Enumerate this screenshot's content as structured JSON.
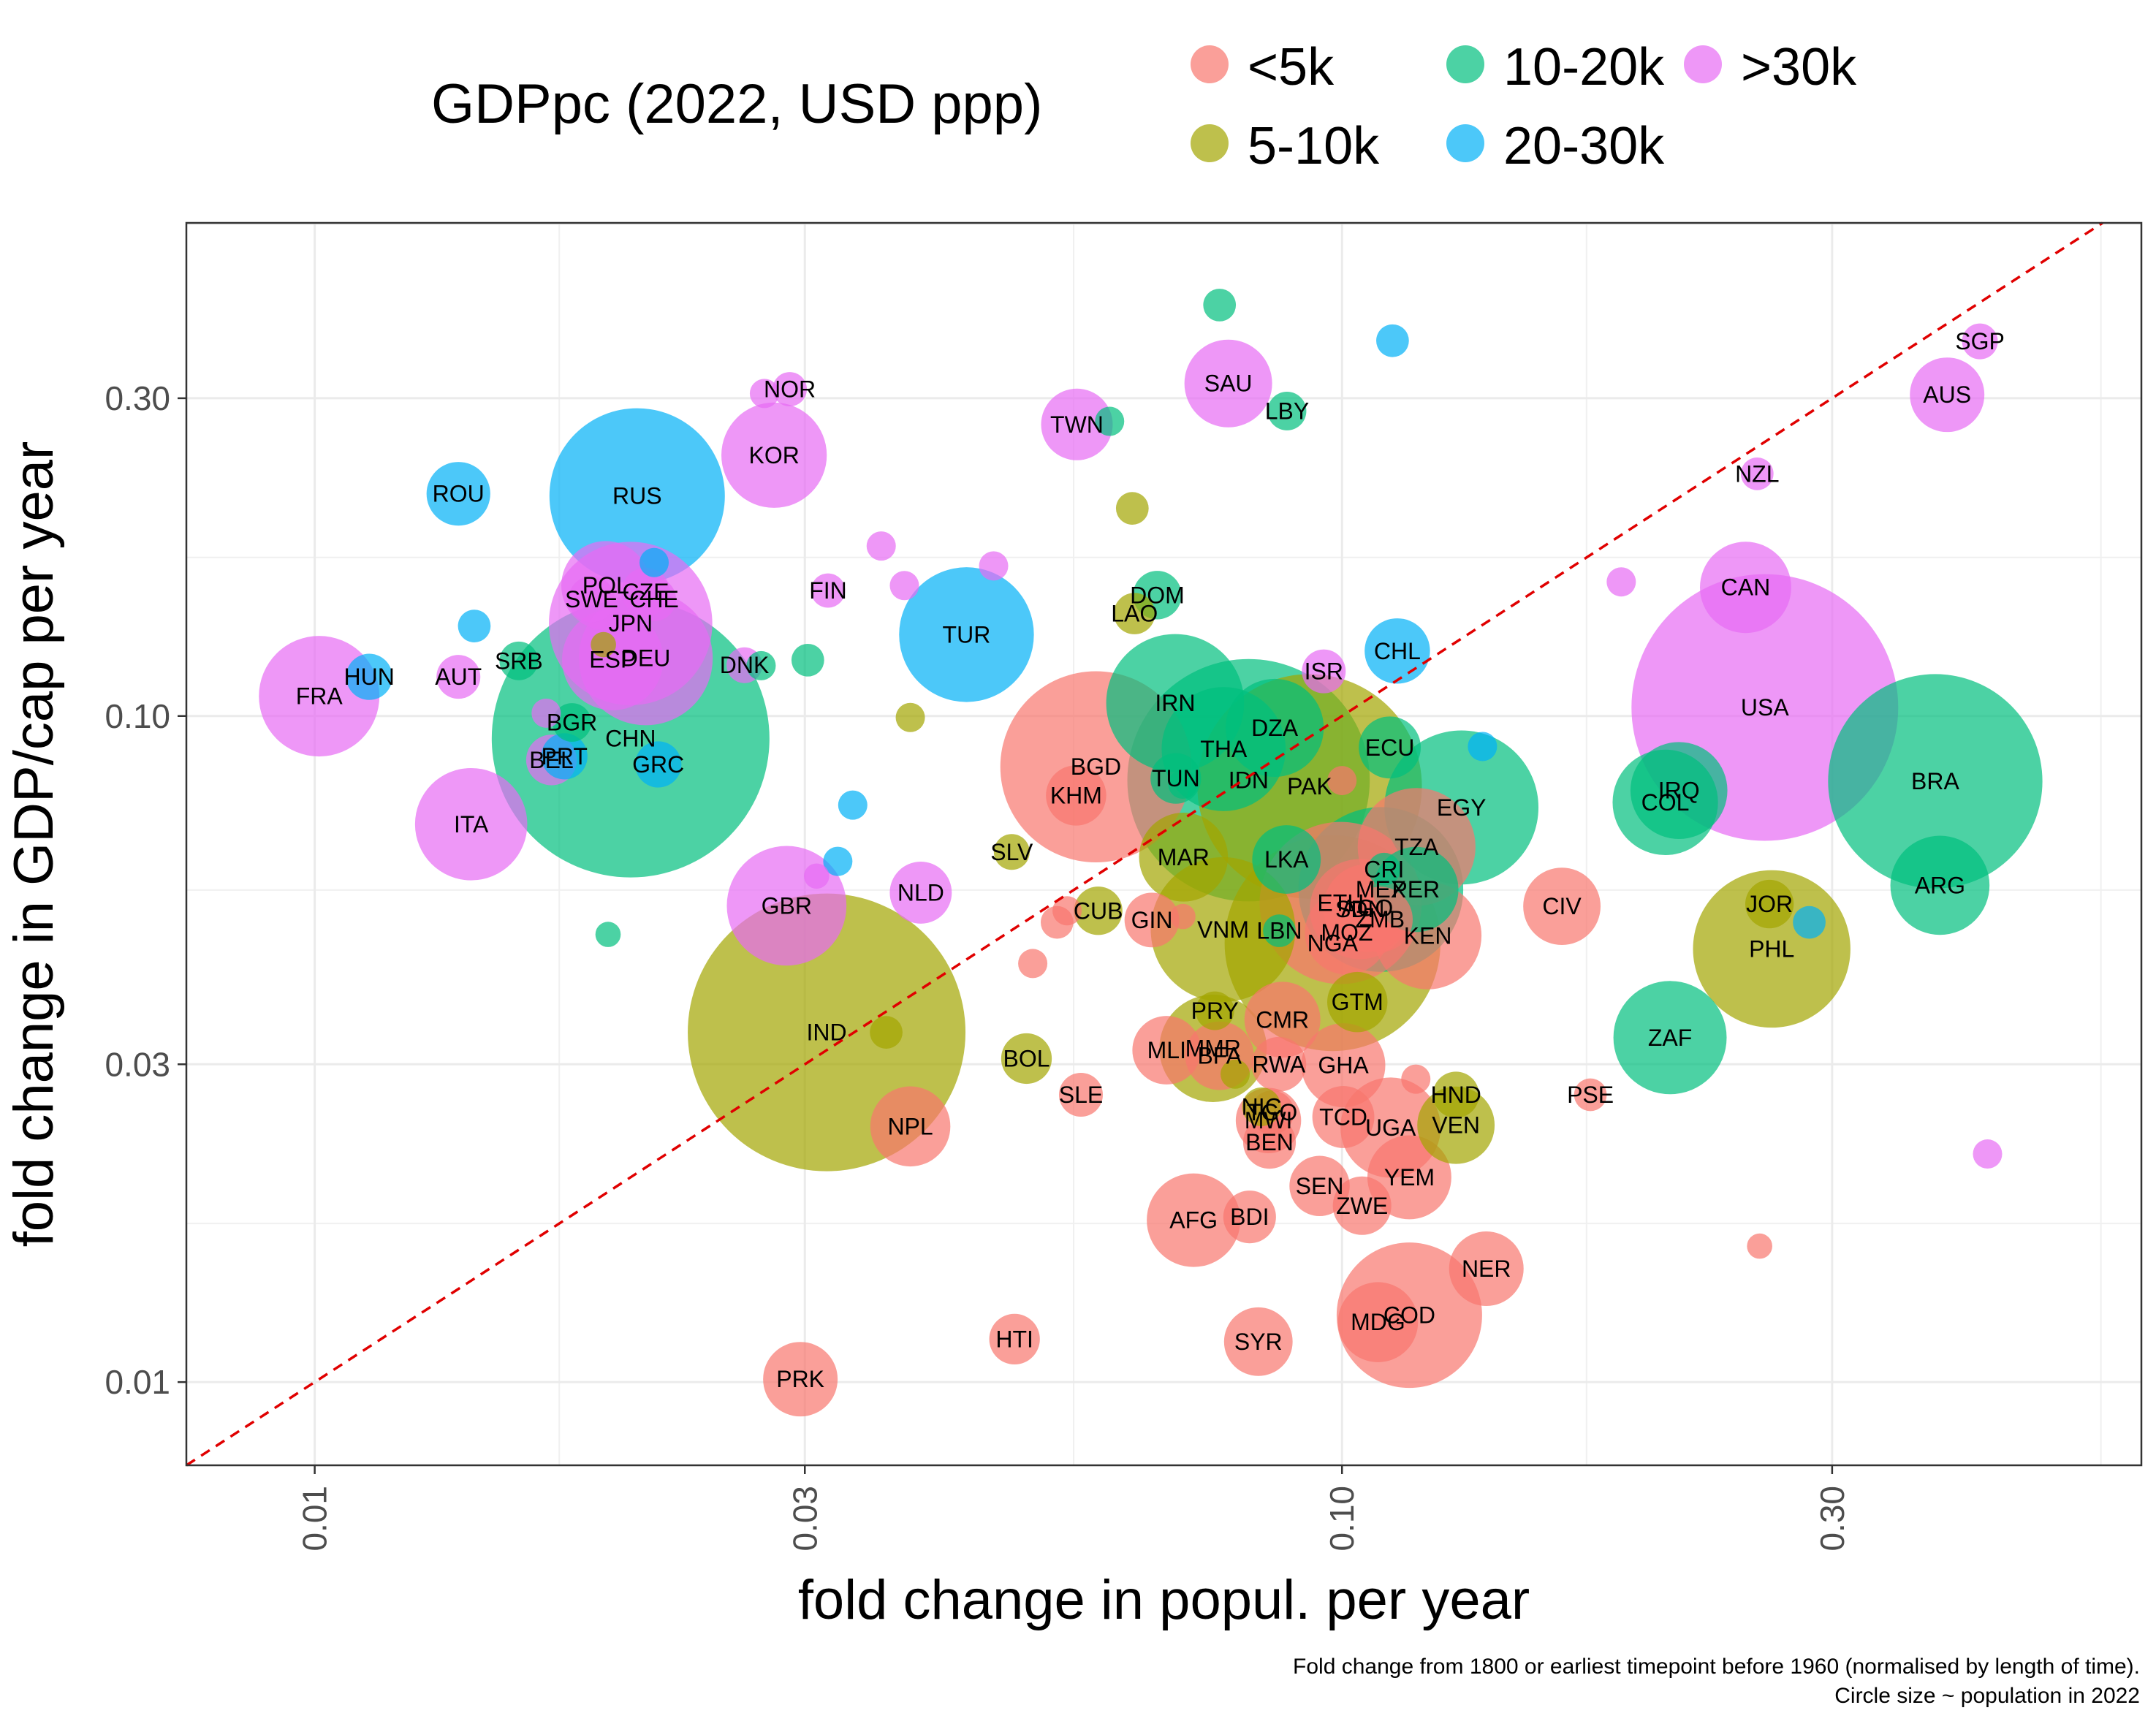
{
  "chart_data": {
    "type": "scatter",
    "xlabel": "fold change in popul. per year",
    "ylabel": "fold change in GDP/cap per year",
    "x_scale": "log10",
    "y_scale": "log10",
    "xlim": [
      0.0075,
      0.6
    ],
    "ylim": [
      0.0075,
      0.55
    ],
    "x_ticks": [
      0.01,
      0.03,
      0.1,
      0.3
    ],
    "x_tick_labels": [
      "0.01",
      "0.03",
      "0.10",
      "0.30"
    ],
    "y_ticks": [
      0.01,
      0.03,
      0.1,
      0.3
    ],
    "y_tick_labels": [
      "0.01",
      "0.03",
      "0.10",
      "0.30"
    ],
    "grid": true,
    "reference_line": "y = x",
    "legend": {
      "title": "GDPpc (2022, USD ppp)",
      "position": "top",
      "entries": [
        {
          "key": "lt5k",
          "label": "<5k",
          "color": "#F8766D"
        },
        {
          "key": "5to10k",
          "label": "5-10k",
          "color": "#A3A500"
        },
        {
          "key": "10to20k",
          "label": "10-20k",
          "color": "#00BF7D"
        },
        {
          "key": "20to30k",
          "label": "20-30k",
          "color": "#00B0F6"
        },
        {
          "key": "gt30k",
          "label": ">30k",
          "color": "#E76BF3"
        }
      ]
    },
    "caption": [
      "Fold change from 1800 or earliest timepoint before 1960 (normalised by length of time).",
      "Circle size ~ population in 2022"
    ],
    "points": [
      {
        "label": "CHN",
        "x": 0.0203,
        "y": 0.0925,
        "g": "10to20k",
        "pop": 1412
      },
      {
        "label": "IND",
        "x": 0.0315,
        "y": 0.0335,
        "g": "5to10k",
        "pop": 1417
      },
      {
        "label": "USA",
        "x": 0.258,
        "y": 0.103,
        "g": "gt30k",
        "pop": 333
      },
      {
        "label": "IDN",
        "x": 0.0811,
        "y": 0.0801,
        "g": "10to20k",
        "pop": 275
      },
      {
        "label": "PAK",
        "x": 0.093,
        "y": 0.0784,
        "g": "5to10k",
        "pop": 236
      },
      {
        "label": "NGA",
        "x": 0.0979,
        "y": 0.0456,
        "g": "5to10k",
        "pop": 218
      },
      {
        "label": "BRA",
        "x": 0.378,
        "y": 0.0798,
        "g": "10to20k",
        "pop": 215
      },
      {
        "label": "BGD",
        "x": 0.0576,
        "y": 0.0839,
        "g": "lt5k",
        "pop": 171
      },
      {
        "label": "RUS",
        "x": 0.0206,
        "y": 0.214,
        "g": "20to30k",
        "pop": 144
      },
      {
        "label": "MEX",
        "x": 0.1091,
        "y": 0.0549,
        "g": "10to20k",
        "pop": 127
      },
      {
        "label": "JPN",
        "x": 0.0203,
        "y": 0.1377,
        "g": "gt30k",
        "pop": 125
      },
      {
        "label": "ETH",
        "x": 0.0997,
        "y": 0.0524,
        "g": "lt5k",
        "pop": 123
      },
      {
        "label": "PHL",
        "x": 0.262,
        "y": 0.0447,
        "g": "5to10k",
        "pop": 116
      },
      {
        "label": "EGY",
        "x": 0.1307,
        "y": 0.0729,
        "g": "10to20k",
        "pop": 111
      },
      {
        "label": "VNM",
        "x": 0.0766,
        "y": 0.0478,
        "g": "5to10k",
        "pop": 98
      },
      {
        "label": "COD",
        "x": 0.1163,
        "y": 0.0126,
        "g": "lt5k",
        "pop": 99
      },
      {
        "label": "TUR",
        "x": 0.0431,
        "y": 0.1325,
        "g": "20to30k",
        "pop": 85
      },
      {
        "label": "IRN",
        "x": 0.0688,
        "y": 0.1046,
        "g": "10to20k",
        "pop": 89
      },
      {
        "label": "DEU",
        "x": 0.021,
        "y": 0.1221,
        "g": "gt30k",
        "pop": 84
      },
      {
        "label": "THA",
        "x": 0.0767,
        "y": 0.0892,
        "g": "10to20k",
        "pop": 72
      },
      {
        "label": "GBR",
        "x": 0.0288,
        "y": 0.0519,
        "g": "gt30k",
        "pop": 67
      },
      {
        "label": "FRA",
        "x": 0.0101,
        "y": 0.1071,
        "g": "gt30k",
        "pop": 68
      },
      {
        "label": "TZA",
        "x": 0.1182,
        "y": 0.0636,
        "g": "lt5k",
        "pop": 65
      },
      {
        "label": "ZAF",
        "x": 0.2086,
        "y": 0.0329,
        "g": "10to20k",
        "pop": 60
      },
      {
        "label": "ITA",
        "x": 0.0142,
        "y": 0.0688,
        "g": "gt30k",
        "pop": 59
      },
      {
        "label": "KEN",
        "x": 0.1212,
        "y": 0.0468,
        "g": "lt5k",
        "pop": 54
      },
      {
        "label": "MMR",
        "x": 0.0749,
        "y": 0.0317,
        "g": "5to10k",
        "pop": 54
      },
      {
        "label": "COL",
        "x": 0.2064,
        "y": 0.0742,
        "g": "10to20k",
        "pop": 52
      },
      {
        "label": "KOR",
        "x": 0.028,
        "y": 0.2464,
        "g": "gt30k",
        "pop": 52
      },
      {
        "label": "ESP",
        "x": 0.0195,
        "y": 0.1215,
        "g": "gt30k",
        "pop": 48
      },
      {
        "label": "UGA",
        "x": 0.1115,
        "y": 0.0241,
        "g": "lt5k",
        "pop": 47
      },
      {
        "label": "ARG",
        "x": 0.382,
        "y": 0.0557,
        "g": "10to20k",
        "pop": 46
      },
      {
        "label": "DZA",
        "x": 0.086,
        "y": 0.096,
        "g": "10to20k",
        "pop": 45
      },
      {
        "label": "IRQ",
        "x": 0.2128,
        "y": 0.0773,
        "g": "10to20k",
        "pop": 44
      },
      {
        "label": "SDN",
        "x": 0.1041,
        "y": 0.0513,
        "g": "lt5k",
        "pop": 47
      },
      {
        "label": "AFG",
        "x": 0.0717,
        "y": 0.0175,
        "g": "lt5k",
        "pop": 41
      },
      {
        "label": "POL",
        "x": 0.0192,
        "y": 0.157,
        "g": "gt30k",
        "pop": 37
      },
      {
        "label": "CAN",
        "x": 0.2471,
        "y": 0.156,
        "g": "gt30k",
        "pop": 39
      },
      {
        "label": "MAR",
        "x": 0.0701,
        "y": 0.0614,
        "g": "5to10k",
        "pop": 37
      },
      {
        "label": "SAU",
        "x": 0.0775,
        "y": 0.3157,
        "g": "gt30k",
        "pop": 36
      },
      {
        "label": "YEM",
        "x": 0.1163,
        "y": 0.0203,
        "g": "lt5k",
        "pop": 33
      },
      {
        "label": "PER",
        "x": 0.118,
        "y": 0.0549,
        "g": "10to20k",
        "pop": 34
      },
      {
        "label": "AGO",
        "x": 0.1058,
        "y": 0.0515,
        "g": "lt5k",
        "pop": 36
      },
      {
        "label": "MOZ",
        "x": 0.1011,
        "y": 0.0473,
        "g": "lt5k",
        "pop": 33
      },
      {
        "label": "GHA",
        "x": 0.1003,
        "y": 0.0299,
        "g": "lt5k",
        "pop": 33
      },
      {
        "label": "NPL",
        "x": 0.038,
        "y": 0.0242,
        "g": "lt5k",
        "pop": 30
      },
      {
        "label": "MDG",
        "x": 0.1084,
        "y": 0.0123,
        "g": "lt5k",
        "pop": 30
      },
      {
        "label": "CIV",
        "x": 0.1637,
        "y": 0.0518,
        "g": "lt5k",
        "pop": 28
      },
      {
        "label": "CMR",
        "x": 0.0875,
        "y": 0.035,
        "g": "lt5k",
        "pop": 27
      },
      {
        "label": "AUS",
        "x": 0.3882,
        "y": 0.3036,
        "g": "gt30k",
        "pop": 26
      },
      {
        "label": "NER",
        "x": 0.1382,
        "y": 0.0148,
        "g": "lt5k",
        "pop": 26
      },
      {
        "label": "TWN",
        "x": 0.0552,
        "y": 0.274,
        "g": "gt30k",
        "pop": 24
      },
      {
        "label": "LKA",
        "x": 0.0883,
        "y": 0.0609,
        "g": "10to20k",
        "pop": 22
      },
      {
        "label": "BFA",
        "x": 0.076,
        "y": 0.0309,
        "g": "lt5k",
        "pop": 22
      },
      {
        "label": "MLI",
        "x": 0.0675,
        "y": 0.0315,
        "g": "lt5k",
        "pop": 22
      },
      {
        "label": "ROU",
        "x": 0.0138,
        "y": 0.2156,
        "g": "20to30k",
        "pop": 19
      },
      {
        "label": "CHL",
        "x": 0.1132,
        "y": 0.1252,
        "g": "20to30k",
        "pop": 20
      },
      {
        "label": "KHM",
        "x": 0.0551,
        "y": 0.076,
        "g": "lt5k",
        "pop": 17
      },
      {
        "label": "MWI",
        "x": 0.0848,
        "y": 0.0247,
        "g": "lt5k",
        "pop": 20
      },
      {
        "label": "ZMB",
        "x": 0.1089,
        "y": 0.0495,
        "g": "lt5k",
        "pop": 20
      },
      {
        "label": "SYR",
        "x": 0.0829,
        "y": 0.0115,
        "g": "lt5k",
        "pop": 22
      },
      {
        "label": "NLD",
        "x": 0.0389,
        "y": 0.0543,
        "g": "gt30k",
        "pop": 18
      },
      {
        "label": "ECU",
        "x": 0.1113,
        "y": 0.0897,
        "g": "10to20k",
        "pop": 18
      },
      {
        "label": "SEN",
        "x": 0.0951,
        "y": 0.0197,
        "g": "lt5k",
        "pop": 17
      },
      {
        "label": "TCD",
        "x": 0.1003,
        "y": 0.025,
        "g": "lt5k",
        "pop": 18
      },
      {
        "label": "GTM",
        "x": 0.1035,
        "y": 0.0372,
        "g": "5to10k",
        "pop": 17
      },
      {
        "label": "ZWE",
        "x": 0.1046,
        "y": 0.0184,
        "g": "lt5k",
        "pop": 16
      },
      {
        "label": "GIN",
        "x": 0.0653,
        "y": 0.0494,
        "g": "lt5k",
        "pop": 14
      },
      {
        "label": "RWA",
        "x": 0.0868,
        "y": 0.03,
        "g": "lt5k",
        "pop": 14
      },
      {
        "label": "BEN",
        "x": 0.085,
        "y": 0.0229,
        "g": "lt5k",
        "pop": 13
      },
      {
        "label": "BDI",
        "x": 0.0813,
        "y": 0.0177,
        "g": "lt5k",
        "pop": 13
      },
      {
        "label": "BOL",
        "x": 0.0493,
        "y": 0.0306,
        "g": "5to10k",
        "pop": 12
      },
      {
        "label": "TUN",
        "x": 0.0689,
        "y": 0.0806,
        "g": "10to20k",
        "pop": 12
      },
      {
        "label": "HTI",
        "x": 0.048,
        "y": 0.0116,
        "g": "lt5k",
        "pop": 12
      },
      {
        "label": "BEL",
        "x": 0.017,
        "y": 0.0859,
        "g": "gt30k",
        "pop": 12
      },
      {
        "label": "JOR",
        "x": 0.2607,
        "y": 0.0522,
        "g": "5to10k",
        "pop": 11
      },
      {
        "label": "DOM",
        "x": 0.0661,
        "y": 0.1519,
        "g": "10to20k",
        "pop": 11
      },
      {
        "label": "CUB",
        "x": 0.0579,
        "y": 0.051,
        "g": "5to10k",
        "pop": 11
      },
      {
        "label": "SWE",
        "x": 0.0186,
        "y": 0.1497,
        "g": "gt30k",
        "pop": 10
      },
      {
        "label": "CZE",
        "x": 0.021,
        "y": 0.1535,
        "g": "gt30k",
        "pop": 11
      },
      {
        "label": "GRC",
        "x": 0.0216,
        "y": 0.0846,
        "g": "20to30k",
        "pop": 10
      },
      {
        "label": "PRT",
        "x": 0.0175,
        "y": 0.087,
        "g": "20to30k",
        "pop": 10
      },
      {
        "label": "HUN",
        "x": 0.0113,
        "y": 0.1145,
        "g": "20to30k",
        "pop": 10
      },
      {
        "label": "HND",
        "x": 0.1291,
        "y": 0.027,
        "g": "5to10k",
        "pop": 10
      },
      {
        "label": "TGO",
        "x": 0.0855,
        "y": 0.0254,
        "g": "lt5k",
        "pop": 9
      },
      {
        "label": "NIC",
        "x": 0.0835,
        "y": 0.0259,
        "g": "5to10k",
        "pop": 7
      },
      {
        "label": "SLE",
        "x": 0.0557,
        "y": 0.027,
        "g": "lt5k",
        "pop": 9
      },
      {
        "label": "AUT",
        "x": 0.0138,
        "y": 0.1145,
        "g": "gt30k",
        "pop": 9
      },
      {
        "label": "CHE",
        "x": 0.0214,
        "y": 0.1497,
        "g": "gt30k",
        "pop": 9
      },
      {
        "label": "ISR",
        "x": 0.096,
        "y": 0.1167,
        "g": "gt30k",
        "pop": 9
      },
      {
        "label": "LAO",
        "x": 0.0628,
        "y": 0.1425,
        "g": "5to10k",
        "pop": 8
      },
      {
        "label": "SRB",
        "x": 0.0158,
        "y": 0.121,
        "g": "10to20k",
        "pop": 7
      },
      {
        "label": "BGR",
        "x": 0.0178,
        "y": 0.0978,
        "g": "10to20k",
        "pop": 7
      },
      {
        "label": "PRY",
        "x": 0.0752,
        "y": 0.0361,
        "g": "5to10k",
        "pop": 7
      },
      {
        "label": "LBY",
        "x": 0.0884,
        "y": 0.287,
        "g": "10to20k",
        "pop": 7
      },
      {
        "label": "LBN",
        "x": 0.0869,
        "y": 0.0476,
        "g": "10to20k",
        "pop": 5
      },
      {
        "label": "SLV",
        "x": 0.0477,
        "y": 0.0625,
        "g": "5to10k",
        "pop": 6
      },
      {
        "label": "VEN",
        "x": 0.1291,
        "y": 0.0243,
        "g": "5to10k",
        "pop": 28
      },
      {
        "label": "SGP",
        "x": 0.4178,
        "y": 0.3651,
        "g": "gt30k",
        "pop": 6
      },
      {
        "label": "DNK",
        "x": 0.0262,
        "y": 0.1192,
        "g": "gt30k",
        "pop": 6
      },
      {
        "label": "FIN",
        "x": 0.0316,
        "y": 0.1543,
        "g": "gt30k",
        "pop": 5.5
      },
      {
        "label": "NOR",
        "x": 0.029,
        "y": 0.3095,
        "g": "gt30k",
        "pop": 5.5
      },
      {
        "label": "CRI",
        "x": 0.1099,
        "y": 0.0589,
        "g": "10to20k",
        "pop": 5
      },
      {
        "label": "NZL",
        "x": 0.2536,
        "y": 0.231,
        "g": "gt30k",
        "pop": 5
      },
      {
        "label": "PSE",
        "x": 0.1745,
        "y": 0.027,
        "g": "lt5k",
        "pop": 5
      },
      {
        "label": "PRK",
        "x": 0.0297,
        "y": 0.0101,
        "g": "lt5k",
        "pop": 26
      },
      {
        "label": "",
        "x": 0.076,
        "y": 0.414,
        "g": "10to20k",
        "pop": 5
      },
      {
        "label": "",
        "x": 0.112,
        "y": 0.366,
        "g": "20to30k",
        "pop": 5
      },
      {
        "label": "",
        "x": 0.0274,
        "y": 0.305,
        "g": "gt30k",
        "pop": 4
      },
      {
        "label": "",
        "x": 0.0625,
        "y": 0.205,
        "g": "5to10k",
        "pop": 5
      },
      {
        "label": "",
        "x": 0.0594,
        "y": 0.277,
        "g": "10to20k",
        "pop": 4
      },
      {
        "label": "",
        "x": 0.0214,
        "y": 0.17,
        "g": "20to30k",
        "pop": 4
      },
      {
        "label": "",
        "x": 0.0356,
        "y": 0.18,
        "g": "gt30k",
        "pop": 4
      },
      {
        "label": "",
        "x": 0.0458,
        "y": 0.168,
        "g": "gt30k",
        "pop": 4
      },
      {
        "label": "",
        "x": 0.0375,
        "y": 0.157,
        "g": "gt30k",
        "pop": 4
      },
      {
        "label": "",
        "x": 0.0143,
        "y": 0.1365,
        "g": "20to30k",
        "pop": 5
      },
      {
        "label": "",
        "x": 0.0272,
        "y": 0.119,
        "g": "10to20k",
        "pop": 4
      },
      {
        "label": "",
        "x": 0.0302,
        "y": 0.1213,
        "g": "10to20k",
        "pop": 5
      },
      {
        "label": "",
        "x": 0.0191,
        "y": 0.128,
        "g": "5to10k",
        "pop": 3
      },
      {
        "label": "",
        "x": 0.0168,
        "y": 0.101,
        "g": "gt30k",
        "pop": 4
      },
      {
        "label": "",
        "x": 0.038,
        "y": 0.0995,
        "g": "5to10k",
        "pop": 4
      },
      {
        "label": "",
        "x": 0.0334,
        "y": 0.0735,
        "g": "20to30k",
        "pop": 4
      },
      {
        "label": "",
        "x": 0.0323,
        "y": 0.0605,
        "g": "20to30k",
        "pop": 4
      },
      {
        "label": "",
        "x": 0.0308,
        "y": 0.0575,
        "g": "gt30k",
        "pop": 3
      },
      {
        "label": "",
        "x": 0.0193,
        "y": 0.047,
        "g": "10to20k",
        "pop": 3
      },
      {
        "label": "",
        "x": 0.036,
        "y": 0.0335,
        "g": "5to10k",
        "pop": 5
      },
      {
        "label": "",
        "x": 0.05,
        "y": 0.0425,
        "g": "lt5k",
        "pop": 4
      },
      {
        "label": "",
        "x": 0.0528,
        "y": 0.049,
        "g": "lt5k",
        "pop": 5
      },
      {
        "label": "",
        "x": 0.054,
        "y": 0.051,
        "g": "lt5k",
        "pop": 4
      },
      {
        "label": "",
        "x": 0.07,
        "y": 0.05,
        "g": "lt5k",
        "pop": 3
      },
      {
        "label": "",
        "x": 0.07,
        "y": 0.079,
        "g": "10to20k",
        "pop": 4
      },
      {
        "label": "",
        "x": 0.0787,
        "y": 0.029,
        "g": "5to10k",
        "pop": 4
      },
      {
        "label": "",
        "x": 0.1,
        "y": 0.08,
        "g": "lt5k",
        "pop": 4
      },
      {
        "label": "",
        "x": 0.118,
        "y": 0.0285,
        "g": "lt5k",
        "pop": 4
      },
      {
        "label": "",
        "x": 0.137,
        "y": 0.09,
        "g": "20to30k",
        "pop": 4
      },
      {
        "label": "",
        "x": 0.187,
        "y": 0.159,
        "g": "gt30k",
        "pop": 4
      },
      {
        "label": "",
        "x": 0.255,
        "y": 0.016,
        "g": "lt5k",
        "pop": 3
      },
      {
        "label": "",
        "x": 0.285,
        "y": 0.049,
        "g": "20to30k",
        "pop": 5
      },
      {
        "label": "",
        "x": 0.425,
        "y": 0.022,
        "g": "gt30k",
        "pop": 4
      }
    ]
  }
}
